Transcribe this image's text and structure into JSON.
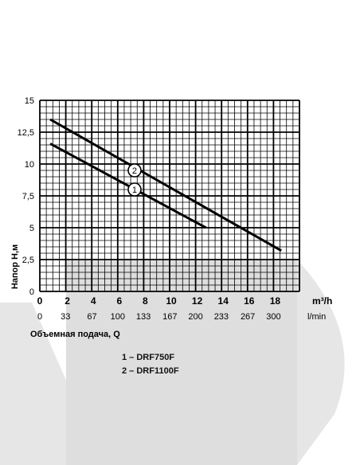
{
  "chart_data": {
    "type": "line",
    "ylabel": "Напор  H,м",
    "xlabel": "Объемная подача, Q",
    "x_unit_top": "m³/h",
    "x_unit_bottom": "l/min",
    "xlim": [
      0,
      20
    ],
    "ylim": [
      0,
      15
    ],
    "grid": true,
    "y_ticks": [
      "0",
      "2,5",
      "5",
      "7,5",
      "10",
      "12,5",
      "15"
    ],
    "y_tick_values": [
      0,
      2.5,
      5,
      7.5,
      10,
      12.5,
      15
    ],
    "x_ticks_top": [
      "0",
      "2",
      "4",
      "6",
      "8",
      "10",
      "12",
      "14",
      "16",
      "18"
    ],
    "x_tick_values": [
      0,
      2,
      4,
      6,
      8,
      10,
      12,
      14,
      16,
      18
    ],
    "x_ticks_bottom": [
      "0",
      "33",
      "67",
      "100",
      "133",
      "167",
      "200",
      "233",
      "267",
      "300"
    ],
    "x_ticks_bottom_values": [
      0,
      33,
      67,
      100,
      133,
      167,
      200,
      233,
      267,
      300
    ],
    "series": [
      {
        "name": "1",
        "x": [
          0.8,
          12.8
        ],
        "y": [
          11.6,
          5.0
        ]
      },
      {
        "name": "2",
        "x": [
          0.8,
          18.6
        ],
        "y": [
          13.5,
          3.2
        ]
      }
    ],
    "markers": [
      {
        "label": "1",
        "x": 7.3,
        "y": 8.0
      },
      {
        "label": "2",
        "x": 7.3,
        "y": 9.5
      }
    ],
    "legend": [
      "1 – DRF750F",
      "2 – DRF1100F"
    ]
  }
}
